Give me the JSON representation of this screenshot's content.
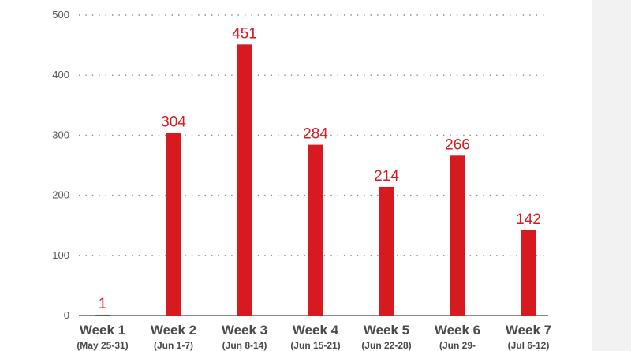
{
  "chart_data": {
    "type": "bar",
    "title": "",
    "xlabel": "",
    "ylabel": "",
    "ylim": [
      0,
      500
    ],
    "yticks": [
      "0",
      "100",
      "200",
      "300",
      "400",
      "500"
    ],
    "grid": "horizontal-dotted",
    "legend": "none",
    "bar_color": "#d71920",
    "categories": [
      "Week 1",
      "Week 2",
      "Week 3",
      "Week 4",
      "Week 5",
      "Week 6",
      "Week 7"
    ],
    "category_subtitles": [
      "(May 25-31)",
      "(Jun 1-7)",
      "(Jun 8-14)",
      "(Jun 15-21)",
      "(Jun 22-28)",
      "(Jun 29-",
      "(Jul 6-12)"
    ],
    "values": [
      1,
      304,
      451,
      284,
      214,
      266,
      142
    ],
    "value_labels": [
      "1",
      "304",
      "451",
      "284",
      "214",
      "266",
      "142"
    ]
  }
}
